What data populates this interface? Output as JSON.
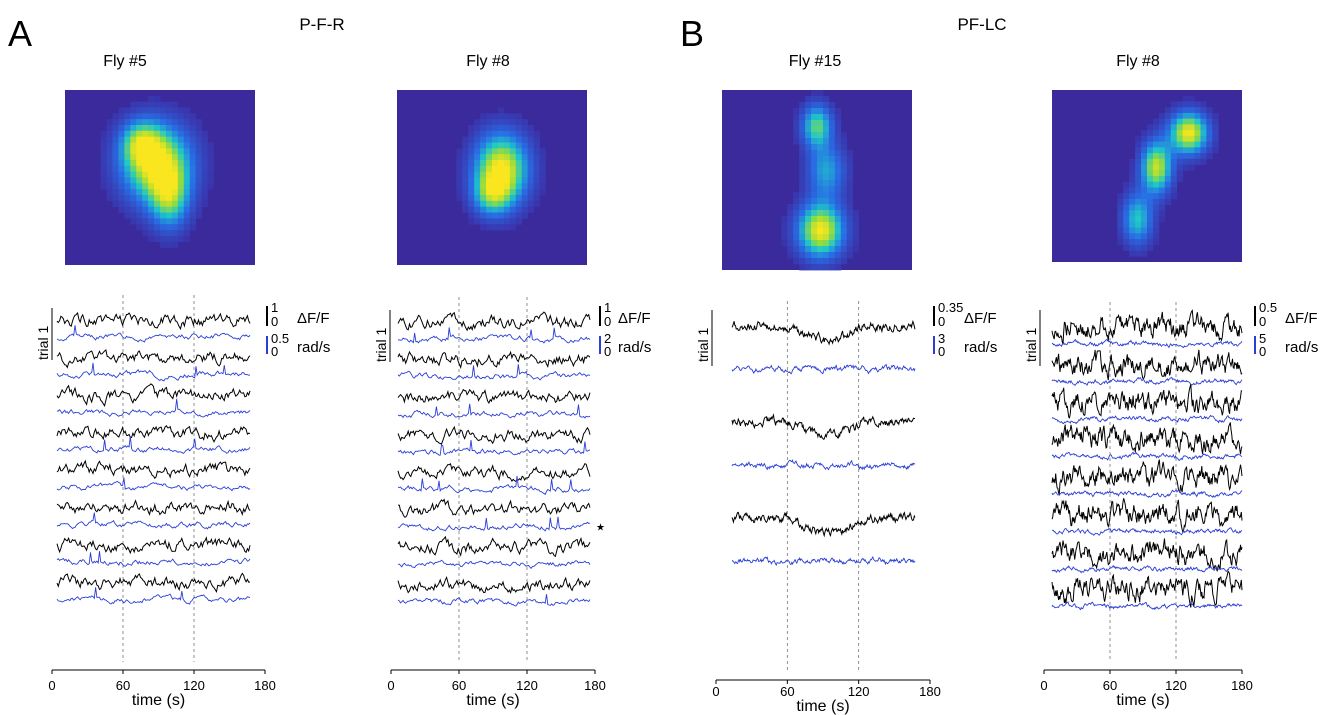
{
  "figure": {
    "panel_labels": [
      "A",
      "B"
    ],
    "panel_titles": [
      "P-F-R",
      "PF-LC"
    ],
    "time_unit": "time (s)",
    "trial_label": "trial 1",
    "dff_label": "ΔF/F",
    "rad_label": "rad/s",
    "star_symbol": "★"
  },
  "colors": {
    "dff_trace": "#000000",
    "rad_trace": "#2b3fd6",
    "axis": "#000000",
    "dashed_line": "#777777",
    "heat_bg": "#3a2a9c"
  },
  "chart_data": [
    {
      "type": "line",
      "title": "Fly #5",
      "panel": "A",
      "xlabel": "time (s)",
      "xlim": [
        0,
        180
      ],
      "xticks": [
        0,
        60,
        120,
        180
      ],
      "stim_lines": [
        60,
        120
      ],
      "n_trials": 8,
      "series": [
        {
          "name": "ΔF/F",
          "scale": {
            "top": "1",
            "bottom": "0"
          }
        },
        {
          "name": "rad/s",
          "scale": {
            "top": "0.5",
            "bottom": "0"
          }
        }
      ],
      "heatmap_blobs": [
        [
          0.48,
          0.42,
          0.18,
          0.22,
          1.0
        ],
        [
          0.55,
          0.62,
          0.1,
          0.18,
          0.6
        ],
        [
          0.4,
          0.3,
          0.1,
          0.12,
          0.5
        ]
      ]
    },
    {
      "type": "line",
      "title": "Fly #8",
      "panel": "A",
      "xlabel": "time (s)",
      "xlim": [
        0,
        180
      ],
      "xticks": [
        0,
        60,
        120,
        180
      ],
      "stim_lines": [
        60,
        120
      ],
      "n_trials": 8,
      "series": [
        {
          "name": "ΔF/F",
          "scale": {
            "top": "1",
            "bottom": "0"
          }
        },
        {
          "name": "rad/s",
          "scale": {
            "top": "2",
            "bottom": "0"
          }
        }
      ],
      "star_trial": 5,
      "heatmap_blobs": [
        [
          0.55,
          0.45,
          0.14,
          0.2,
          1.0
        ],
        [
          0.5,
          0.6,
          0.1,
          0.12,
          0.5
        ]
      ]
    },
    {
      "type": "line",
      "title": "Fly #15",
      "panel": "B",
      "xlabel": "time (s)",
      "xlim": [
        0,
        180
      ],
      "xticks": [
        0,
        60,
        120,
        180
      ],
      "stim_lines": [
        60,
        120
      ],
      "n_trials": 3,
      "series": [
        {
          "name": "ΔF/F",
          "scale": {
            "top": "0.35",
            "bottom": "0"
          }
        },
        {
          "name": "rad/s",
          "scale": {
            "top": "3",
            "bottom": "0"
          }
        }
      ],
      "heatmap_blobs": [
        [
          0.5,
          0.2,
          0.08,
          0.12,
          0.7
        ],
        [
          0.55,
          0.45,
          0.1,
          0.15,
          0.5
        ],
        [
          0.52,
          0.78,
          0.12,
          0.15,
          1.0
        ]
      ]
    },
    {
      "type": "line",
      "title": "Fly #8",
      "panel": "B",
      "xlabel": "time (s)",
      "xlim": [
        0,
        180
      ],
      "xticks": [
        0,
        60,
        120,
        180
      ],
      "stim_lines": [
        60,
        120
      ],
      "n_trials": 8,
      "series": [
        {
          "name": "ΔF/F",
          "scale": {
            "top": "0.5",
            "bottom": "0"
          }
        },
        {
          "name": "rad/s",
          "scale": {
            "top": "5",
            "bottom": "0"
          }
        }
      ],
      "heatmap_blobs": [
        [
          0.72,
          0.25,
          0.1,
          0.12,
          1.0
        ],
        [
          0.55,
          0.45,
          0.08,
          0.15,
          0.9
        ],
        [
          0.45,
          0.75,
          0.08,
          0.15,
          0.6
        ]
      ]
    }
  ]
}
